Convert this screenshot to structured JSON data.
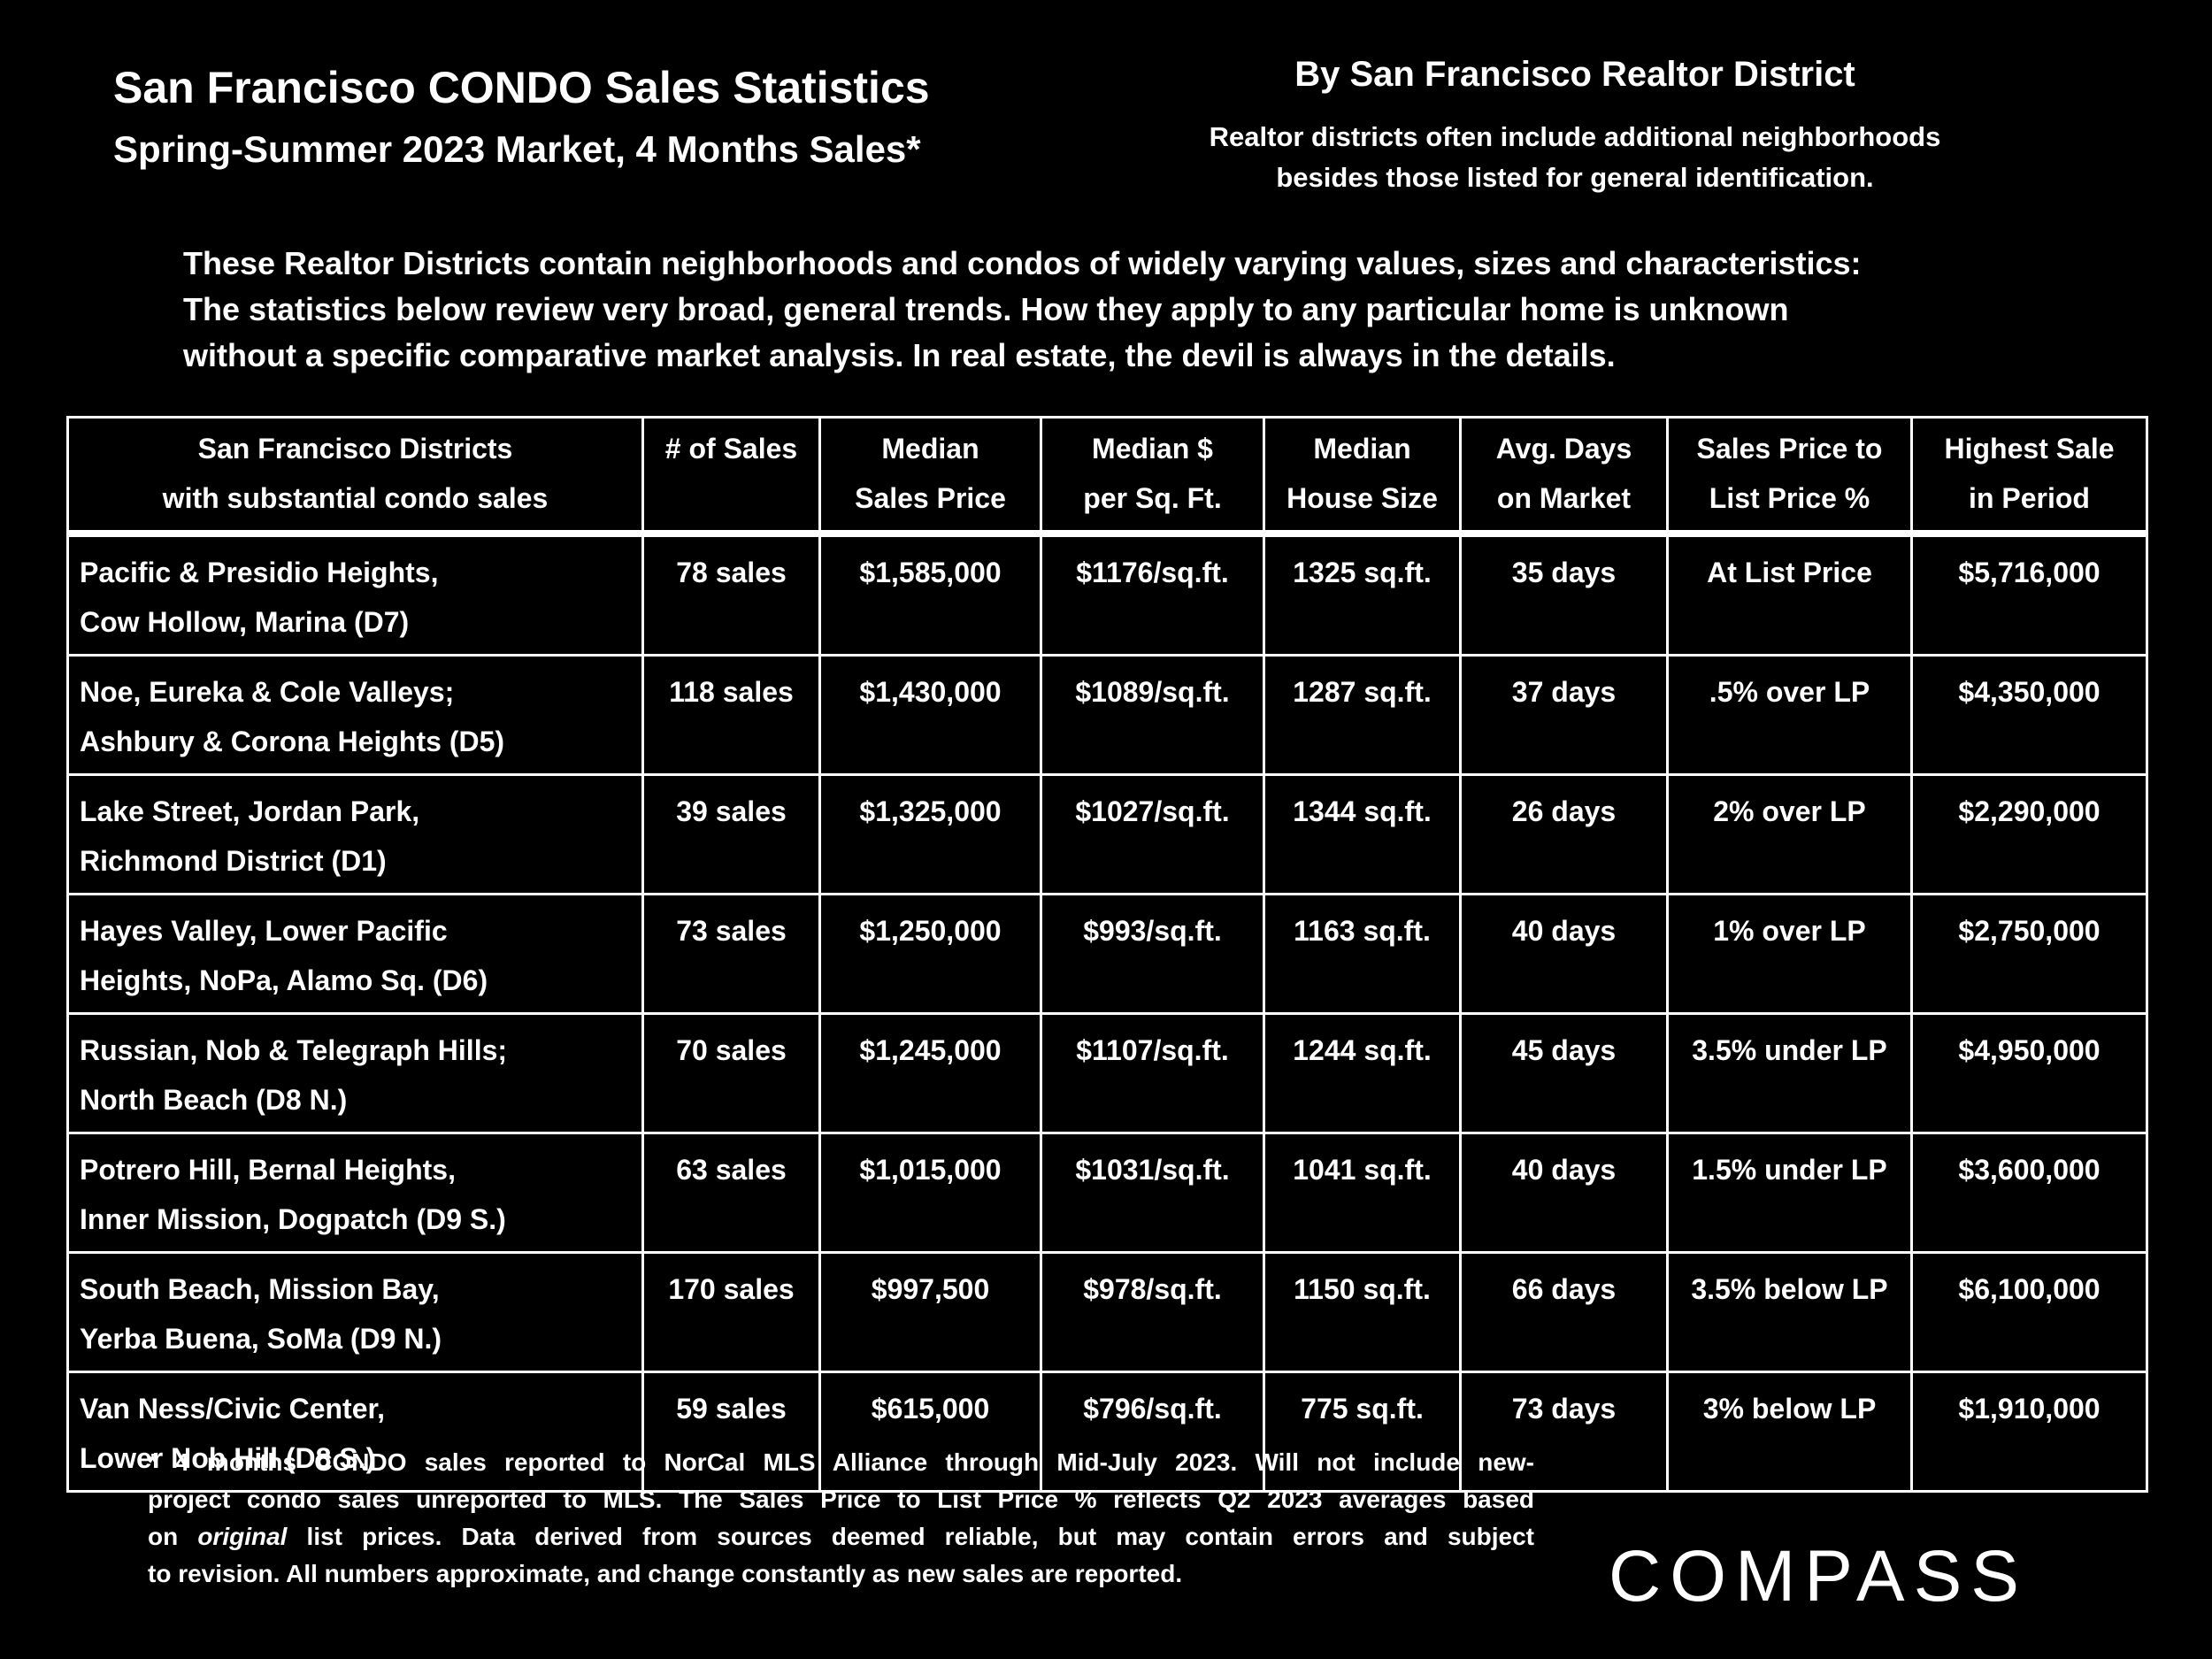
{
  "header": {
    "title": "San Francisco CONDO Sales Statistics",
    "subtitle": "Spring-Summer 2023 Market, 4 Months Sales*",
    "right_title": "By San Francisco Realtor District",
    "right_note": [
      "Realtor districts often include additional neighborhoods",
      "besides those listed for general identification."
    ]
  },
  "intro": [
    "These Realtor Districts contain neighborhoods and condos of widely varying values, sizes and characteristics:",
    "The statistics below review very broad, general trends. How they apply to any particular home is unknown",
    "without a specific comparative market analysis. In real estate, the devil is always in the details."
  ],
  "table": {
    "headers": [
      [
        "San Francisco Districts",
        "with substantial condo sales"
      ],
      [
        "# of Sales"
      ],
      [
        "Median",
        "Sales Price"
      ],
      [
        "Median $",
        "per Sq. Ft."
      ],
      [
        "Median",
        "House Size"
      ],
      [
        "Avg. Days",
        "on Market"
      ],
      [
        "Sales Price to",
        "List Price %"
      ],
      [
        "Highest Sale",
        "in Period"
      ]
    ],
    "rows": [
      [
        [
          "Pacific & Presidio Heights,",
          "Cow Hollow, Marina (D7)"
        ],
        "78 sales",
        "$1,585,000",
        "$1176/sq.ft.",
        "1325 sq.ft.",
        "35 days",
        "At List Price",
        "$5,716,000"
      ],
      [
        [
          "Noe, Eureka & Cole Valleys;",
          "Ashbury & Corona Heights (D5)"
        ],
        "118 sales",
        "$1,430,000",
        "$1089/sq.ft.",
        "1287 sq.ft.",
        "37 days",
        ".5% over LP",
        "$4,350,000"
      ],
      [
        [
          "Lake Street, Jordan Park,",
          "Richmond District (D1)"
        ],
        "39 sales",
        "$1,325,000",
        "$1027/sq.ft.",
        "1344 sq.ft.",
        "26 days",
        "2% over LP",
        "$2,290,000"
      ],
      [
        [
          "Hayes Valley, Lower Pacific",
          "Heights, NoPa, Alamo Sq. (D6)"
        ],
        "73 sales",
        "$1,250,000",
        "$993/sq.ft.",
        "1163 sq.ft.",
        "40 days",
        "1% over LP",
        "$2,750,000"
      ],
      [
        [
          "Russian, Nob & Telegraph Hills;",
          "North Beach (D8 N.)"
        ],
        "70 sales",
        "$1,245,000",
        "$1107/sq.ft.",
        "1244 sq.ft.",
        "45 days",
        "3.5% under LP",
        "$4,950,000"
      ],
      [
        [
          "Potrero Hill, Bernal Heights,",
          "Inner Mission, Dogpatch (D9 S.)"
        ],
        "63 sales",
        "$1,015,000",
        "$1031/sq.ft.",
        "1041 sq.ft.",
        "40 days",
        "1.5% under LP",
        "$3,600,000"
      ],
      [
        [
          "South Beach, Mission Bay,",
          "Yerba Buena, SoMa (D9 N.)"
        ],
        "170 sales",
        "$997,500",
        "$978/sq.ft.",
        "1150 sq.ft.",
        "66 days",
        "3.5% below LP",
        "$6,100,000"
      ],
      [
        [
          "Van Ness/Civic Center,",
          "Lower Nob Hill (D8 S.)"
        ],
        "59 sales",
        "$615,000",
        "$796/sq.ft.",
        "775 sq.ft.",
        "73 days",
        "3% below LP",
        "$1,910,000"
      ]
    ]
  },
  "footnote": [
    [
      "* 4 months CONDO sales reported to NorCal MLS Alliance through Mid-July 2023. Will not include new-"
    ],
    [
      "project condo sales unreported to MLS. The Sales Price to List Price % reflects Q2 2023 averages based"
    ],
    [
      "on ",
      "original",
      " list prices. Data derived from sources deemed reliable, but may contain errors and subject"
    ],
    [
      "to revision. All numbers approximate, and change constantly as new sales are reported."
    ]
  ],
  "logo": "COMPASS"
}
